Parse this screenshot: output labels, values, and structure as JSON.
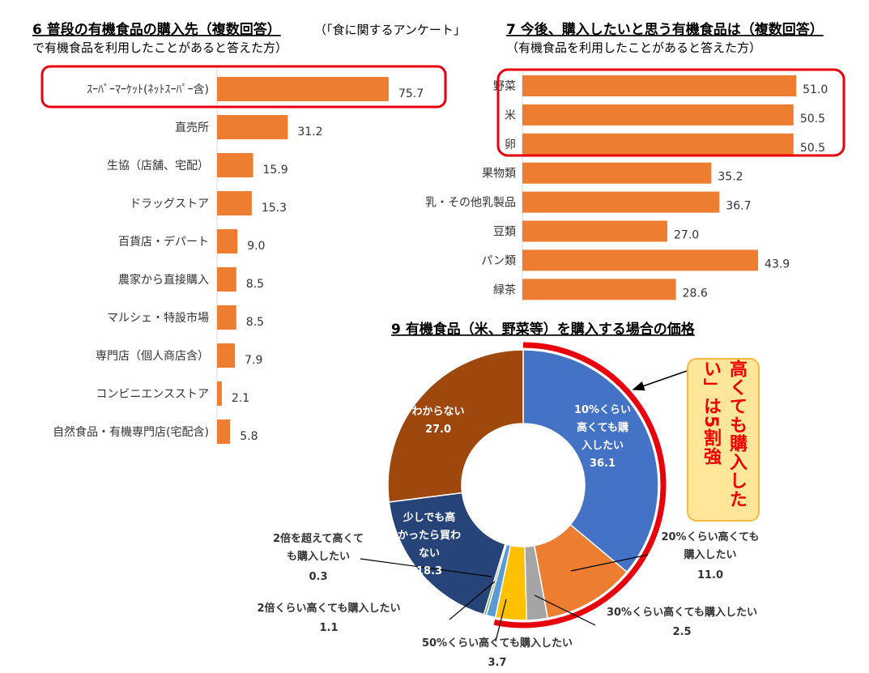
{
  "colors": {
    "bar": "#ed7d31",
    "highlight": "#e8000d",
    "callout_fill": "#ffe699",
    "callout_border": "#f4b942"
  },
  "chart_data": [
    {
      "type": "bar",
      "orientation": "horizontal",
      "title": "6  普段の有機食品の購入先（複数回答）",
      "title_note": "（「食に関するアンケート」",
      "subtitle": "で有機食品を利用したことがあると答えた方）",
      "categories": [
        "ｽｰﾊﾟｰﾏｰｹｯﾄ(ﾈｯﾄｽｰﾊﾟｰ含)",
        "直売所",
        "生協（店舗、宅配）",
        "ドラッグストア",
        "百貨店・デパート",
        "農家から直接購入",
        "マルシェ・特設市場",
        "専門店（個人商店含）",
        "コンビニエンスストア",
        "自然食品・有機専門店(宅配含)"
      ],
      "values": [
        75.7,
        31.2,
        15.9,
        15.3,
        9.0,
        8.5,
        8.5,
        7.9,
        2.1,
        5.8
      ],
      "value_labels": [
        "75.7",
        "31.2",
        "15.9",
        "15.3",
        "9.0",
        "8.5",
        "8.5",
        "7.9",
        "2.1",
        "5.8"
      ],
      "highlighted": [
        "ｽｰﾊﾟｰﾏｰｹｯﾄ(ﾈｯﾄｽｰﾊﾟｰ含)"
      ]
    },
    {
      "type": "bar",
      "orientation": "horizontal",
      "title": "7  今後、購入したいと思う有機食品は（複数回答）",
      "subtitle": "（有機食品を利用したことがあると答えた方）",
      "categories": [
        "野菜",
        "米",
        "卵",
        "果物類",
        "乳・その他乳製品",
        "豆類",
        "パン類",
        "緑茶"
      ],
      "values": [
        51.0,
        50.5,
        50.5,
        35.2,
        36.7,
        27.0,
        43.9,
        28.6
      ],
      "value_labels": [
        "51.0",
        "50.5",
        "50.5",
        "35.2",
        "36.7",
        "27.0",
        "43.9",
        "28.6"
      ],
      "highlighted": [
        "野菜",
        "米",
        "卵"
      ]
    },
    {
      "type": "pie",
      "donut": true,
      "title": "9  有機食品（米、野菜等）を購入する場合の価格",
      "slices": [
        {
          "label": "10%くらい高くても購入したい",
          "lines": [
            "10%くらい",
            "高くても購",
            "入したい"
          ],
          "value": 36.1,
          "value_label": "36.1",
          "color": "#4472c4"
        },
        {
          "label": "20%くらい高くても購入したい",
          "lines": [
            "20%くらい高くても",
            "購入したい"
          ],
          "value": 11.0,
          "value_label": "11.0",
          "color": "#ed7d31"
        },
        {
          "label": "30%くらい高くても購入したい",
          "lines": [
            "30%くらい高くても購入したい"
          ],
          "value": 2.5,
          "value_label": "2.5",
          "color": "#a5a5a5"
        },
        {
          "label": "50%くらい高くても購入したい",
          "lines": [
            "50%くらい高くても購入したい"
          ],
          "value": 3.7,
          "value_label": "3.7",
          "color": "#ffc000"
        },
        {
          "label": "2倍くらい高くても購入したい",
          "lines": [
            "2倍くらい高くても購入したい"
          ],
          "value": 1.1,
          "value_label": "1.1",
          "color": "#5b9bd5"
        },
        {
          "label": "2倍を超えて高くても購入したい",
          "lines": [
            "2倍を超えて高くて",
            "も購入したい"
          ],
          "value": 0.3,
          "value_label": "0.3",
          "color": "#70ad47"
        },
        {
          "label": "少しでも高かったら買わない",
          "lines": [
            "少しでも高",
            "かったら買わ",
            "ない"
          ],
          "value": 18.3,
          "value_label": "18.3",
          "color": "#264478"
        },
        {
          "label": "わからない",
          "lines": [
            "わからない"
          ],
          "value": 27.0,
          "value_label": "27.0",
          "color": "#9e480e"
        }
      ],
      "highlight_range": "10%〜50%くらい高くても購入したい",
      "callout": "高くても購入したい」は5割強"
    }
  ]
}
